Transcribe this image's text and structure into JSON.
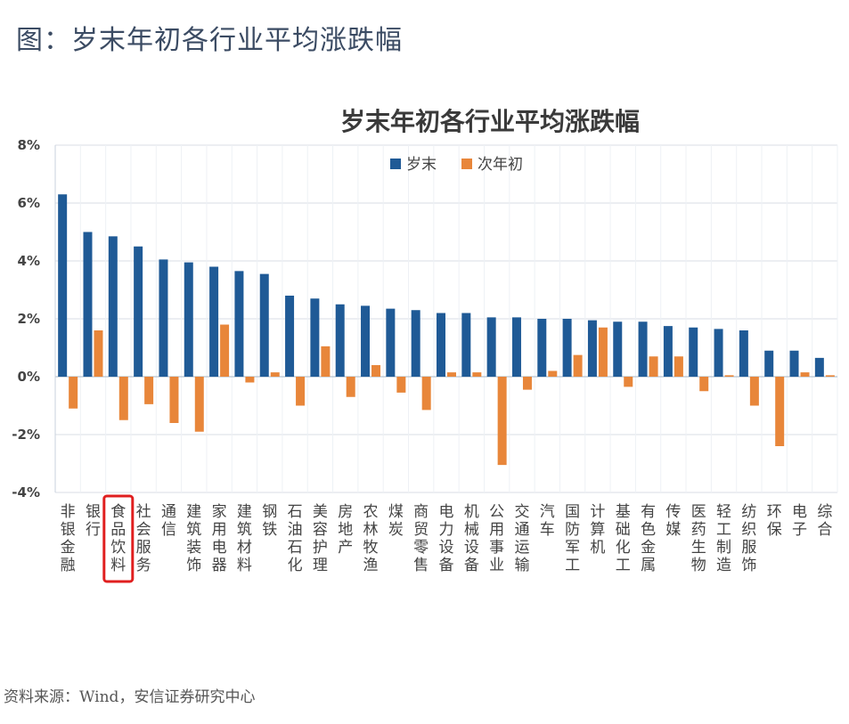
{
  "figure_caption": "图：岁末年初各行业平均涨跌幅",
  "source": "资料来源：Wind，安信证券研究中心",
  "colors": {
    "series1": "#1f5a96",
    "series2": "#e8863a",
    "highlight": "#e01f1f",
    "grid": "#d8dee6"
  },
  "chart_data": {
    "type": "bar",
    "title": "岁末年初各行业平均涨跌幅",
    "xlabel": "",
    "ylabel": "",
    "ylim": [
      -4,
      8
    ],
    "yticks": [
      "8%",
      "6%",
      "4%",
      "2%",
      "0%",
      "-2%",
      "-4%"
    ],
    "grid": true,
    "legend_position": "top",
    "highlighted_category": "食品饮料",
    "categories": [
      "非银金融",
      "银行",
      "食品饮料",
      "社会服务",
      "通信",
      "建筑装饰",
      "家用电器",
      "建筑材料",
      "钢铁",
      "石油石化",
      "美容护理",
      "房地产",
      "农林牧渔",
      "煤炭",
      "商贸零售",
      "电力设备",
      "机械设备",
      "公用事业",
      "交通运输",
      "汽车",
      "国防军工",
      "计算机",
      "基础化工",
      "有色金属",
      "传媒",
      "医药生物",
      "轻工制造",
      "纺织服饰",
      "环保",
      "电子",
      "综合"
    ],
    "series": [
      {
        "name": "岁末",
        "values": [
          6.3,
          5.0,
          4.85,
          4.5,
          4.05,
          3.95,
          3.8,
          3.65,
          3.55,
          2.8,
          2.7,
          2.5,
          2.45,
          2.35,
          2.3,
          2.2,
          2.2,
          2.05,
          2.05,
          2.0,
          2.0,
          1.95,
          1.9,
          1.9,
          1.75,
          1.7,
          1.65,
          1.6,
          0.9,
          0.9,
          0.65
        ]
      },
      {
        "name": "次年初",
        "values": [
          -1.1,
          1.6,
          -1.5,
          -0.95,
          -1.6,
          -1.9,
          1.8,
          -0.2,
          0.15,
          -1.0,
          1.05,
          -0.7,
          0.4,
          -0.55,
          -1.15,
          0.15,
          0.15,
          -3.05,
          -0.45,
          0.2,
          0.75,
          1.7,
          -0.35,
          0.7,
          0.7,
          -0.5,
          0.05,
          -1.0,
          -2.4,
          0.15,
          0.05
        ]
      }
    ]
  }
}
